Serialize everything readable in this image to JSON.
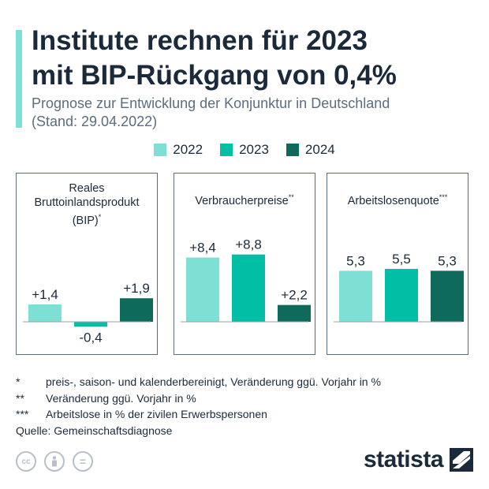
{
  "header": {
    "title_line1": "Institute rechnen für 2023",
    "title_line2": "mit BIP-Rückgang von 0,4%",
    "subtitle_line1": "Prognose zur Entwicklung der Konjunktur in Deutschland",
    "subtitle_line2": "(Stand: 29.04.2022)"
  },
  "legend": [
    {
      "label": "2022",
      "color": "#7ee0d4"
    },
    {
      "label": "2023",
      "color": "#00bfa5"
    },
    {
      "label": "2024",
      "color": "#0e6b5c"
    }
  ],
  "chart_data": [
    {
      "type": "bar",
      "title_lines": [
        "Reales",
        "Bruttoinlandsprodukt",
        "(BIP)"
      ],
      "title_mark": "*",
      "categories": [
        "2022",
        "2023",
        "2024"
      ],
      "values": [
        1.4,
        -0.4,
        1.9
      ],
      "labels": [
        "+1,4",
        "-0,4",
        "+1,9"
      ]
    },
    {
      "type": "bar",
      "title_lines": [
        "Verbraucherpreise"
      ],
      "title_mark": "**",
      "categories": [
        "2022",
        "2023",
        "2024"
      ],
      "values": [
        8.4,
        8.8,
        2.2
      ],
      "labels": [
        "+8,4",
        "+8,8",
        "+2,2"
      ]
    },
    {
      "type": "bar",
      "title_lines": [
        "Arbeitslosenquote"
      ],
      "title_mark": "***",
      "categories": [
        "2022",
        "2023",
        "2024"
      ],
      "values": [
        5.3,
        5.5,
        5.3
      ],
      "labels": [
        "5,3",
        "5,5",
        "5,3"
      ]
    }
  ],
  "notes": [
    {
      "mark": "*",
      "text": "preis-, saison- und kalenderbereinigt, Veränderung ggü. Vorjahr in %"
    },
    {
      "mark": "**",
      "text": "Veränderung ggü. Vorjahr in %"
    },
    {
      "mark": "***",
      "text": "Arbeitslose in % der zivilen Erwerbspersonen"
    }
  ],
  "source": "Quelle: Gemeinschaftsdiagnose",
  "footer": {
    "brand": "statista",
    "icons": [
      "cc-icon",
      "person-icon",
      "equals-icon"
    ],
    "icon_glyphs": [
      "cc",
      "",
      "="
    ]
  }
}
